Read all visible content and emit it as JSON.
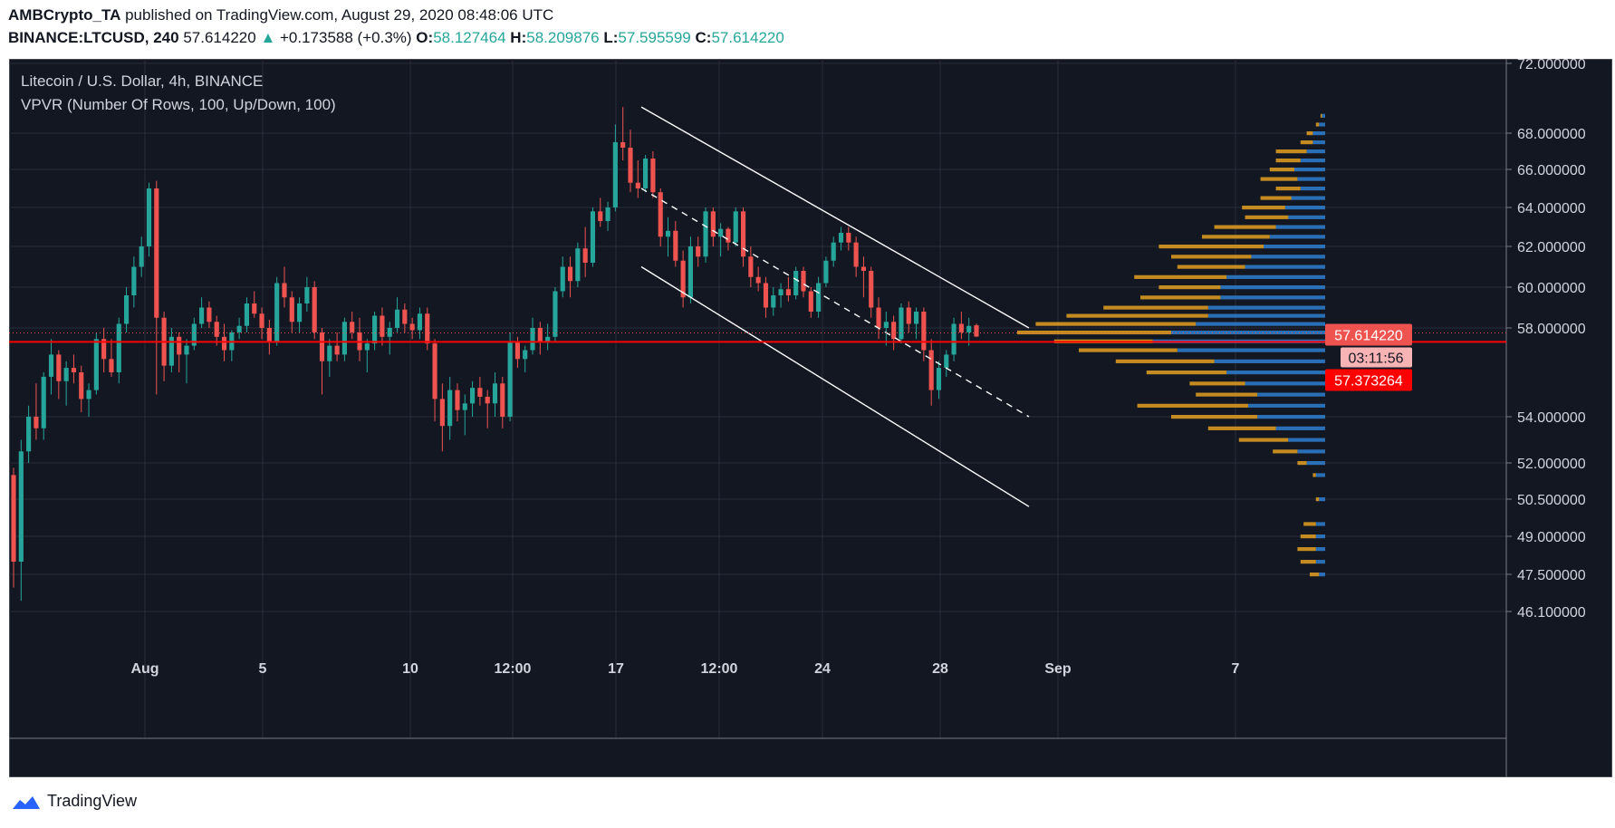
{
  "header": {
    "author": "AMBCrypto_TA",
    "published": "published on TradingView.com, August 29, 2020 08:48:06 UTC",
    "symbol": "BINANCE:LTCUSD, 240",
    "last": "57.614220",
    "change": "+0.173588 (+0.3%)",
    "o_label": "O:",
    "o_value": "58.127464",
    "h_label": "H:",
    "h_value": "58.209876",
    "l_label": "L:",
    "l_value": "57.595599",
    "c_label": "C:",
    "c_value": "57.614220",
    "change_arrow": "▲"
  },
  "legend": {
    "title": "Litecoin / U.S. Dollar, 4h, BINANCE",
    "indicator": "VPVR (Number Of Rows, 100, Up/Down, 100)"
  },
  "footer": {
    "brand": "TradingView"
  },
  "colors": {
    "background": "#131722",
    "up": "#26a69a",
    "down": "#ef5350",
    "grid": "#2a2e39",
    "price_line": "#ff0000",
    "vp_up": "#2f7fd0",
    "vp_down": "#e3a020",
    "channel": "#ffffff"
  },
  "chart_data": {
    "type": "candlestick",
    "title": "Litecoin / U.S. Dollar, 4h, BINANCE",
    "y_ticks": [
      "72.000000",
      "68.000000",
      "66.000000",
      "64.000000",
      "62.000000",
      "60.000000",
      "58.000000",
      "54.000000",
      "52.000000",
      "50.500000",
      "49.000000",
      "47.500000",
      "46.100000"
    ],
    "x_ticks": [
      "Aug",
      "5",
      "10",
      "12:00",
      "17",
      "12:00",
      "24",
      "28",
      "Sep",
      "7"
    ],
    "last_price": 57.61422,
    "last_price_label": "57.614220",
    "countdown_label": "03:11:56",
    "reference_price": 57.373264,
    "reference_price_label": "57.373264",
    "y_range": [
      45.2,
      72.4
    ],
    "candles_ohlc": [
      [
        51.5,
        51.8,
        47.0,
        48.0
      ],
      [
        48.0,
        53.0,
        46.5,
        52.5
      ],
      [
        52.5,
        54.5,
        52.0,
        54.0
      ],
      [
        54.0,
        55.5,
        53.0,
        53.5
      ],
      [
        53.5,
        56.0,
        53.0,
        55.8
      ],
      [
        55.8,
        57.5,
        55.0,
        56.8
      ],
      [
        56.8,
        57.0,
        54.8,
        55.6
      ],
      [
        55.6,
        56.5,
        54.5,
        56.2
      ],
      [
        56.2,
        56.8,
        55.5,
        56.0
      ],
      [
        56.0,
        56.3,
        54.2,
        54.8
      ],
      [
        54.8,
        55.5,
        54.0,
        55.2
      ],
      [
        55.2,
        57.8,
        55.0,
        57.5
      ],
      [
        57.5,
        58.0,
        56.0,
        56.6
      ],
      [
        56.6,
        57.5,
        55.8,
        56.0
      ],
      [
        56.0,
        58.5,
        55.5,
        58.2
      ],
      [
        58.2,
        60.0,
        57.8,
        59.6
      ],
      [
        59.6,
        61.5,
        59.0,
        61.0
      ],
      [
        61.0,
        62.5,
        60.5,
        62.0
      ],
      [
        62.0,
        65.3,
        61.5,
        65.0
      ],
      [
        65.0,
        65.4,
        55.0,
        58.5
      ],
      [
        58.5,
        58.8,
        55.6,
        56.3
      ],
      [
        56.3,
        58.0,
        56.0,
        57.6
      ],
      [
        57.6,
        57.8,
        56.0,
        56.8
      ],
      [
        56.8,
        57.5,
        55.5,
        57.2
      ],
      [
        57.2,
        58.5,
        57.0,
        58.2
      ],
      [
        58.2,
        59.5,
        58.0,
        59.0
      ],
      [
        59.0,
        59.3,
        58.0,
        58.3
      ],
      [
        58.3,
        58.6,
        57.2,
        57.6
      ],
      [
        57.6,
        58.2,
        56.5,
        57.0
      ],
      [
        57.0,
        57.9,
        56.5,
        57.8
      ],
      [
        57.8,
        58.5,
        57.5,
        58.1
      ],
      [
        58.1,
        59.5,
        57.8,
        59.2
      ],
      [
        59.2,
        59.8,
        58.5,
        58.7
      ],
      [
        58.7,
        59.0,
        57.5,
        58.0
      ],
      [
        58.0,
        58.4,
        56.8,
        57.4
      ],
      [
        57.4,
        60.5,
        57.2,
        60.2
      ],
      [
        60.2,
        61.0,
        59.0,
        59.5
      ],
      [
        59.5,
        59.8,
        57.8,
        58.3
      ],
      [
        58.3,
        59.5,
        57.8,
        59.2
      ],
      [
        59.2,
        60.5,
        58.8,
        60.0
      ],
      [
        60.0,
        60.3,
        57.5,
        57.8
      ],
      [
        57.8,
        58.0,
        55.0,
        56.5
      ],
      [
        56.5,
        57.5,
        55.8,
        57.2
      ],
      [
        57.2,
        57.8,
        56.5,
        56.8
      ],
      [
        56.8,
        58.5,
        56.5,
        58.3
      ],
      [
        58.3,
        58.8,
        57.5,
        57.8
      ],
      [
        57.8,
        58.5,
        56.5,
        57.0
      ],
      [
        57.0,
        57.5,
        56.0,
        57.3
      ],
      [
        57.3,
        58.8,
        57.0,
        58.6
      ],
      [
        58.6,
        59.0,
        57.2,
        57.6
      ],
      [
        57.6,
        58.3,
        56.8,
        58.0
      ],
      [
        58.0,
        59.5,
        57.8,
        58.9
      ],
      [
        58.9,
        59.2,
        57.8,
        58.2
      ],
      [
        58.2,
        58.5,
        57.5,
        57.9
      ],
      [
        57.9,
        59.0,
        57.5,
        58.7
      ],
      [
        58.7,
        59.0,
        57.0,
        57.3
      ],
      [
        57.3,
        57.5,
        53.8,
        54.8
      ],
      [
        54.8,
        55.5,
        52.5,
        53.6
      ],
      [
        53.6,
        55.8,
        53.0,
        55.2
      ],
      [
        55.2,
        55.5,
        53.8,
        54.3
      ],
      [
        54.3,
        55.0,
        53.2,
        54.6
      ],
      [
        54.6,
        55.6,
        54.0,
        55.3
      ],
      [
        55.3,
        55.8,
        54.5,
        54.9
      ],
      [
        54.9,
        55.2,
        53.5,
        54.6
      ],
      [
        54.6,
        56.0,
        54.0,
        55.5
      ],
      [
        55.5,
        55.8,
        53.5,
        54.0
      ],
      [
        54.0,
        57.8,
        53.8,
        57.4
      ],
      [
        57.4,
        57.6,
        56.2,
        56.6
      ],
      [
        56.6,
        57.2,
        56.0,
        57.0
      ],
      [
        57.0,
        58.5,
        56.8,
        58.0
      ],
      [
        58.0,
        58.3,
        56.8,
        57.4
      ],
      [
        57.4,
        58.2,
        57.0,
        57.6
      ],
      [
        57.6,
        60.0,
        57.4,
        59.8
      ],
      [
        59.8,
        61.5,
        59.5,
        61.0
      ],
      [
        61.0,
        61.5,
        59.5,
        60.3
      ],
      [
        60.3,
        62.2,
        60.0,
        61.9
      ],
      [
        61.9,
        63.0,
        60.5,
        61.2
      ],
      [
        61.2,
        64.0,
        61.0,
        63.8
      ],
      [
        63.8,
        64.5,
        63.0,
        63.3
      ],
      [
        63.3,
        64.3,
        62.8,
        64.0
      ],
      [
        64.0,
        68.5,
        63.8,
        67.5
      ],
      [
        67.5,
        69.5,
        66.5,
        67.2
      ],
      [
        67.2,
        68.2,
        64.8,
        65.3
      ],
      [
        65.3,
        66.5,
        64.5,
        65.0
      ],
      [
        65.0,
        66.8,
        64.8,
        66.6
      ],
      [
        66.6,
        67.0,
        64.5,
        64.8
      ],
      [
        64.8,
        65.0,
        62.0,
        62.5
      ],
      [
        62.5,
        63.5,
        61.5,
        62.8
      ],
      [
        62.8,
        63.3,
        61.0,
        61.3
      ],
      [
        61.3,
        61.8,
        59.0,
        59.5
      ],
      [
        59.5,
        62.5,
        59.2,
        62.0
      ],
      [
        62.0,
        62.5,
        61.0,
        61.5
      ],
      [
        61.5,
        64.0,
        61.2,
        63.8
      ],
      [
        63.8,
        64.0,
        62.0,
        62.5
      ],
      [
        62.5,
        63.2,
        61.5,
        62.9
      ],
      [
        62.9,
        63.0,
        61.8,
        62.2
      ],
      [
        62.2,
        64.0,
        62.0,
        63.8
      ],
      [
        63.8,
        64.0,
        61.0,
        61.5
      ],
      [
        61.5,
        62.0,
        60.0,
        60.5
      ],
      [
        60.5,
        61.0,
        59.8,
        60.2
      ],
      [
        60.2,
        60.5,
        58.5,
        59.0
      ],
      [
        59.0,
        60.0,
        58.6,
        59.6
      ],
      [
        59.6,
        60.2,
        59.0,
        59.9
      ],
      [
        59.9,
        60.5,
        59.3,
        59.6
      ],
      [
        59.6,
        61.0,
        59.4,
        60.8
      ],
      [
        60.8,
        61.0,
        59.5,
        59.8
      ],
      [
        59.8,
        60.0,
        58.5,
        58.8
      ],
      [
        58.8,
        60.5,
        58.5,
        60.2
      ],
      [
        60.2,
        61.5,
        60.0,
        61.3
      ],
      [
        61.3,
        62.5,
        61.0,
        62.2
      ],
      [
        62.2,
        63.0,
        61.8,
        62.7
      ],
      [
        62.7,
        63.0,
        61.8,
        62.2
      ],
      [
        62.2,
        62.5,
        60.5,
        61.0
      ],
      [
        61.0,
        61.5,
        59.5,
        60.8
      ],
      [
        60.8,
        61.0,
        58.5,
        59.0
      ],
      [
        59.0,
        59.5,
        57.5,
        58.0
      ],
      [
        58.0,
        58.8,
        57.2,
        58.3
      ],
      [
        58.3,
        58.6,
        57.0,
        57.5
      ],
      [
        57.5,
        59.2,
        57.3,
        59.0
      ],
      [
        59.0,
        59.3,
        57.8,
        58.2
      ],
      [
        58.2,
        59.0,
        57.5,
        58.8
      ],
      [
        58.8,
        59.0,
        56.5,
        57.0
      ],
      [
        57.0,
        57.5,
        54.5,
        55.2
      ],
      [
        55.2,
        56.5,
        54.8,
        56.2
      ],
      [
        56.2,
        57.0,
        55.8,
        56.8
      ],
      [
        56.8,
        58.5,
        56.5,
        58.2
      ],
      [
        58.2,
        58.8,
        57.5,
        57.8
      ],
      [
        57.8,
        58.5,
        57.2,
        58.1
      ],
      [
        58.13,
        58.21,
        57.6,
        57.61
      ]
    ],
    "volume_profile_rows": [
      [
        47.5,
        0.2,
        0.3
      ],
      [
        48.0,
        0.3,
        0.5
      ],
      [
        48.5,
        0.3,
        0.6
      ],
      [
        49.0,
        0.3,
        0.5
      ],
      [
        49.5,
        0.3,
        0.4
      ],
      [
        50.5,
        0.2,
        0.1
      ],
      [
        51.5,
        0.3,
        0.1
      ],
      [
        52.0,
        0.6,
        0.3
      ],
      [
        52.5,
        0.9,
        0.8
      ],
      [
        53.0,
        1.2,
        1.6
      ],
      [
        53.5,
        1.6,
        2.2
      ],
      [
        54.0,
        2.2,
        2.8
      ],
      [
        54.5,
        2.5,
        3.6
      ],
      [
        55.0,
        2.2,
        2.0
      ],
      [
        55.5,
        2.6,
        1.8
      ],
      [
        56.0,
        3.2,
        2.6
      ],
      [
        56.5,
        3.6,
        3.2
      ],
      [
        57.0,
        4.8,
        3.2
      ],
      [
        57.4,
        5.6,
        3.2
      ],
      [
        57.8,
        5.0,
        5.0
      ],
      [
        58.2,
        4.2,
        5.2
      ],
      [
        58.6,
        3.8,
        4.6
      ],
      [
        59.0,
        3.8,
        3.4
      ],
      [
        59.5,
        3.4,
        2.6
      ],
      [
        60.0,
        3.4,
        2.0
      ],
      [
        60.5,
        3.2,
        3.0
      ],
      [
        61.0,
        2.6,
        2.2
      ],
      [
        61.5,
        2.4,
        2.6
      ],
      [
        62.0,
        2.0,
        3.4
      ],
      [
        62.5,
        1.8,
        2.2
      ],
      [
        63.0,
        1.6,
        2.0
      ],
      [
        63.5,
        1.2,
        1.4
      ],
      [
        64.0,
        1.3,
        1.4
      ],
      [
        64.5,
        1.1,
        1.0
      ],
      [
        65.0,
        0.8,
        0.8
      ],
      [
        65.5,
        0.9,
        1.2
      ],
      [
        66.0,
        1.0,
        0.8
      ],
      [
        66.5,
        0.8,
        0.8
      ],
      [
        67.0,
        0.6,
        1.0
      ],
      [
        67.5,
        0.4,
        0.4
      ],
      [
        68.0,
        0.4,
        0.2
      ],
      [
        68.5,
        0.2,
        0.1
      ],
      [
        69.0,
        0.1,
        0.05
      ]
    ],
    "channel": {
      "upper": [
        [
          0,
          69.5
        ],
        [
          1,
          58.0
        ]
      ],
      "lower": [
        [
          0,
          61.0
        ],
        [
          1,
          50.2
        ]
      ],
      "mid": [
        [
          0,
          65.0
        ],
        [
          1,
          54.0
        ]
      ]
    }
  }
}
